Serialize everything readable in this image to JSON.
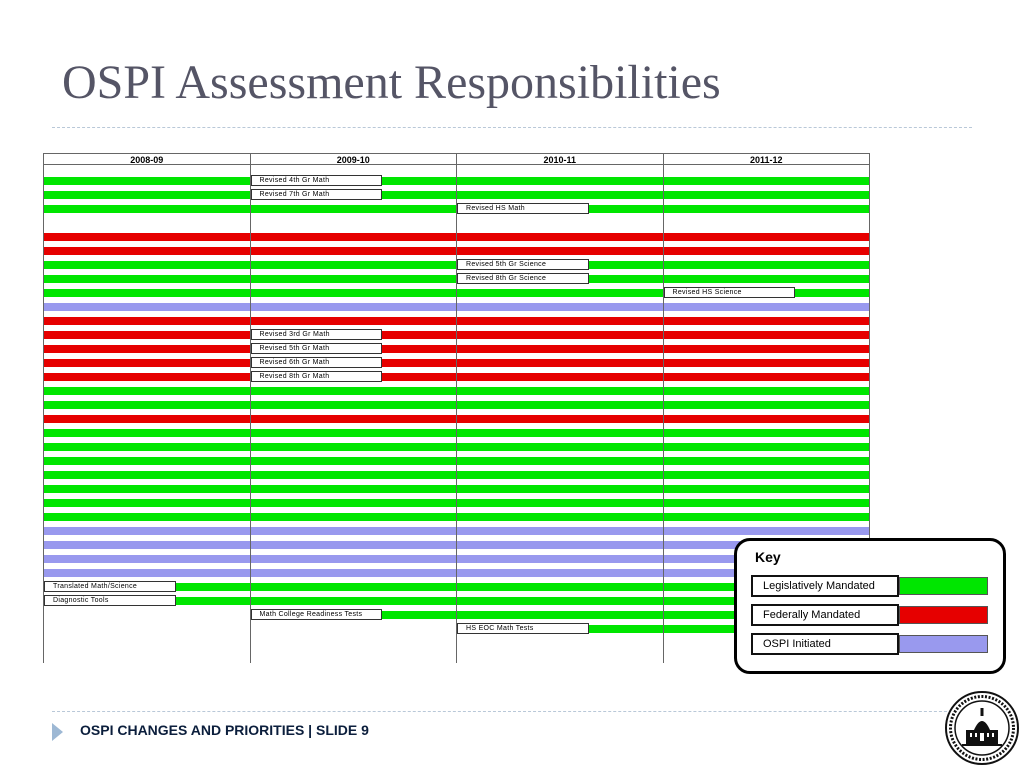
{
  "title": "OSPI Assessment Responsibilities",
  "footer": {
    "text": "OSPI CHANGES AND PRIORITIES  |  SLIDE 9"
  },
  "colors": {
    "green": "#00e600",
    "red": "#e60000",
    "lavender": "#9999ee",
    "title": "#555566"
  },
  "timeline": {
    "columns": [
      "2008-09",
      "2009-10",
      "2010-11",
      "2011-12"
    ],
    "rows": [
      {
        "type": "green",
        "label": "Revised 4th Gr Math",
        "label_col": 1,
        "label_end": 2
      },
      {
        "type": "green",
        "label": "Revised 7th Gr Math",
        "label_col": 1,
        "label_end": 2
      },
      {
        "type": "green",
        "label": "Revised HS Math",
        "label_col": 2,
        "label_end": 3
      },
      {
        "type": "none"
      },
      {
        "type": "red"
      },
      {
        "type": "red"
      },
      {
        "type": "green",
        "label": "Revised 5th Gr Science",
        "label_col": 2,
        "label_end": 3
      },
      {
        "type": "green",
        "label": "Revised 8th Gr Science",
        "label_col": 2,
        "label_end": 3
      },
      {
        "type": "green",
        "label": "Revised HS Science",
        "label_col": 3,
        "label_end": 4
      },
      {
        "type": "lavender"
      },
      {
        "type": "red"
      },
      {
        "type": "red",
        "label": "Revised 3rd Gr Math",
        "label_col": 1,
        "label_end": 2
      },
      {
        "type": "red",
        "label": "Revised 5th Gr Math",
        "label_col": 1,
        "label_end": 2
      },
      {
        "type": "red",
        "label": "Revised 6th Gr Math",
        "label_col": 1,
        "label_end": 2
      },
      {
        "type": "red",
        "label": "Revised 8th Gr Math",
        "label_col": 1,
        "label_end": 2
      },
      {
        "type": "green"
      },
      {
        "type": "green"
      },
      {
        "type": "red"
      },
      {
        "type": "green"
      },
      {
        "type": "green"
      },
      {
        "type": "green"
      },
      {
        "type": "green"
      },
      {
        "type": "green"
      },
      {
        "type": "green"
      },
      {
        "type": "green"
      },
      {
        "type": "lavender"
      },
      {
        "type": "lavender"
      },
      {
        "type": "lavender"
      },
      {
        "type": "lavender"
      },
      {
        "type": "green",
        "label": "Translated Math/Science",
        "label_col": 0,
        "label_end": 1
      },
      {
        "type": "green",
        "label": "Diagnostic Tools",
        "label_col": 0,
        "label_end": 1
      },
      {
        "type": "green",
        "start_col": 1,
        "label": "Math College Readiness Tests",
        "label_col": 1,
        "label_end": 2
      },
      {
        "type": "green",
        "start_col": 2,
        "label": "HS EOC Math Tests",
        "label_col": 2,
        "label_end": 3
      }
    ]
  },
  "key": {
    "title": "Key",
    "items": [
      {
        "label": "Legislatively Mandated",
        "color": "#00e600"
      },
      {
        "label": "Federally Mandated",
        "color": "#e60000"
      },
      {
        "label": "OSPI Initiated",
        "color": "#9999ee"
      }
    ]
  }
}
